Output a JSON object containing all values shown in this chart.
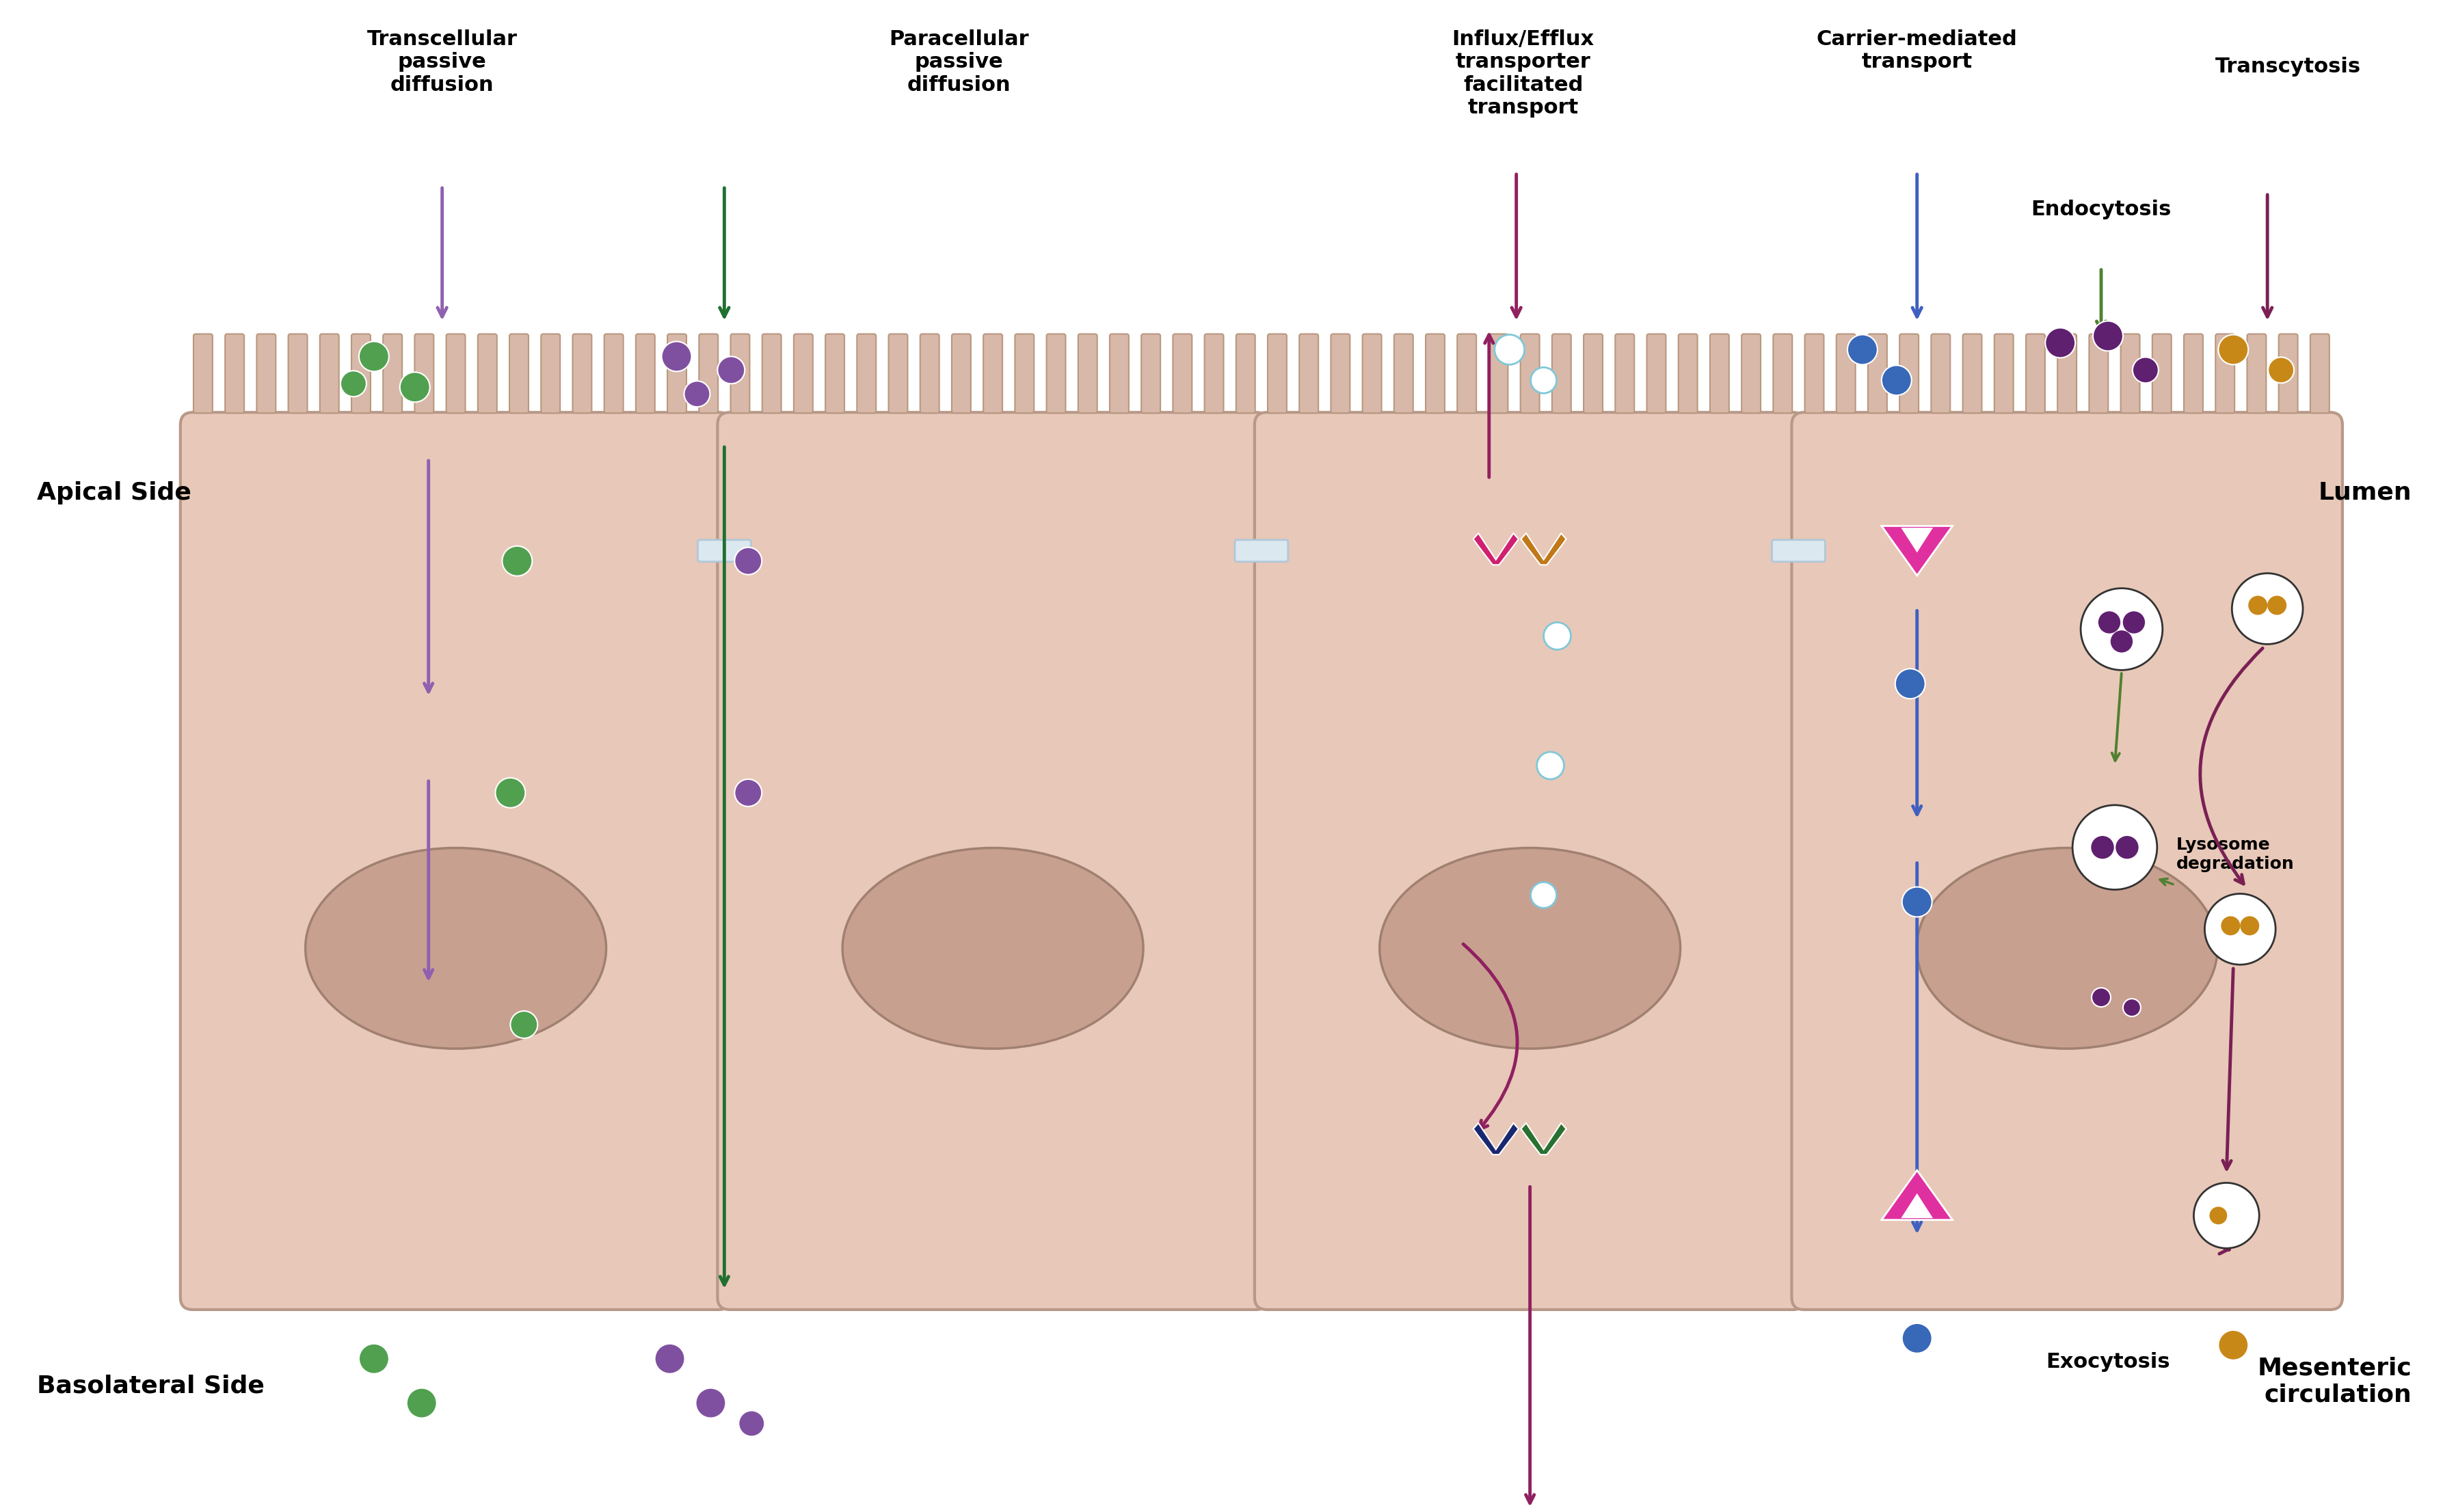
{
  "fig_width": 35.92,
  "fig_height": 22.12,
  "bg_color": "#ffffff",
  "cell_fill": "#e8c8b8",
  "cell_stroke": "#b89888",
  "nucleus_fill": "#c8a090",
  "nucleus_stroke": "#a08070",
  "tight_junction_fill": "#dce8f0",
  "tight_junction_stroke": "#b0c8d8",
  "microvillus_fill": "#d8b8a8",
  "microvillus_stroke": "#b89880",
  "labels": {
    "transcellular": "Transcellular\npassive\ndiffusion",
    "paracellular": "Paracellular\npassive\ndiffusion",
    "influx_efflux": "Influx/Efflux\ntransporter\nfacilitated\ntransport",
    "carrier": "Carrier-mediated\ntransport",
    "endocytosis": "Endocytosis",
    "transcytosis": "Transcytosis",
    "apical": "Apical Side",
    "basolateral": "Basolateral Side",
    "lumen": "Lumen",
    "mesenteric": "Mesenteric\ncirculation",
    "lysosome": "Lysosome\ndegradation",
    "exocytosis": "Exocytosis"
  },
  "arrow_colors": {
    "transcellular": "#9060b0",
    "paracellular": "#207030",
    "influx_efflux": "#902060",
    "carrier": "#4060c0",
    "endocytosis": "#508030",
    "transcytosis": "#7a2055"
  },
  "dot_colors": {
    "green": "#50a050",
    "purple": "#8050a0",
    "cyan_hollow": "#80c8d8",
    "blue": "#3868b8",
    "darkpurple": "#602070",
    "orange": "#c88818",
    "darkorange": "#b07010"
  }
}
